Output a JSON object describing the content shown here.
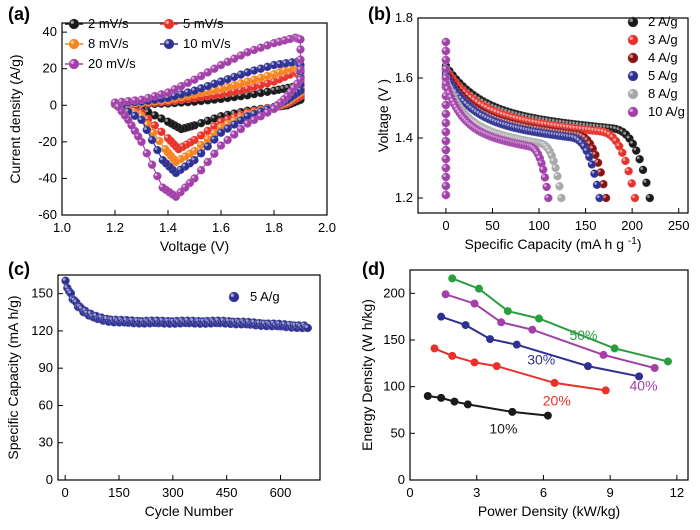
{
  "chart_data": [
    {
      "panel": "(a)",
      "type": "line",
      "title": "",
      "xlabel": "Voltage (V)",
      "ylabel": "Current density (A/g)",
      "xlim": [
        1.0,
        2.0
      ],
      "ylim": [
        -60,
        45
      ],
      "xticks": [
        "1.0",
        "1.2",
        "1.4",
        "1.6",
        "1.8",
        "2.0"
      ],
      "yticks": [
        "-60",
        "-40",
        "-20",
        "0",
        "20",
        "40"
      ],
      "series": [
        {
          "name": "2 mV/s",
          "color": "#1a1a1a",
          "upper": [
            [
              1.2,
              0.4
            ],
            [
              1.3,
              0.6
            ],
            [
              1.4,
              1.0
            ],
            [
              1.5,
              2
            ],
            [
              1.6,
              3.5
            ],
            [
              1.7,
              5.5
            ],
            [
              1.8,
              8
            ],
            [
              1.87,
              10
            ],
            [
              1.9,
              9
            ]
          ],
          "lower": [
            [
              1.9,
              3
            ],
            [
              1.85,
              0
            ],
            [
              1.8,
              -1
            ],
            [
              1.7,
              -3
            ],
            [
              1.6,
              -6
            ],
            [
              1.5,
              -11
            ],
            [
              1.45,
              -13
            ],
            [
              1.4,
              -9
            ],
            [
              1.3,
              -2
            ],
            [
              1.2,
              0.4
            ]
          ]
        },
        {
          "name": "5 mV/s",
          "color": "#e8312b",
          "upper": [
            [
              1.2,
              0.6
            ],
            [
              1.3,
              1
            ],
            [
              1.4,
              2
            ],
            [
              1.5,
              4
            ],
            [
              1.6,
              6
            ],
            [
              1.7,
              9
            ],
            [
              1.8,
              13
            ],
            [
              1.88,
              18
            ],
            [
              1.9,
              16
            ]
          ],
          "lower": [
            [
              1.9,
              5
            ],
            [
              1.85,
              1
            ],
            [
              1.8,
              -1
            ],
            [
              1.7,
              -4
            ],
            [
              1.6,
              -9
            ],
            [
              1.5,
              -19
            ],
            [
              1.44,
              -24
            ],
            [
              1.4,
              -18
            ],
            [
              1.3,
              -4
            ],
            [
              1.2,
              0.6
            ]
          ]
        },
        {
          "name": "8 mV/s",
          "color": "#f5841f",
          "upper": [
            [
              1.2,
              0.8
            ],
            [
              1.3,
              1.5
            ],
            [
              1.4,
              3
            ],
            [
              1.5,
              6
            ],
            [
              1.6,
              9
            ],
            [
              1.7,
              13
            ],
            [
              1.8,
              17
            ],
            [
              1.88,
              21
            ],
            [
              1.9,
              20
            ]
          ],
          "lower": [
            [
              1.9,
              7
            ],
            [
              1.85,
              2
            ],
            [
              1.8,
              -1
            ],
            [
              1.7,
              -5
            ],
            [
              1.6,
              -12
            ],
            [
              1.5,
              -25
            ],
            [
              1.43,
              -31
            ],
            [
              1.39,
              -24
            ],
            [
              1.3,
              -6
            ],
            [
              1.2,
              0.8
            ]
          ]
        },
        {
          "name": "10 mV/s",
          "color": "#2e3192",
          "upper": [
            [
              1.2,
              1
            ],
            [
              1.3,
              2
            ],
            [
              1.4,
              4
            ],
            [
              1.5,
              8
            ],
            [
              1.6,
              13
            ],
            [
              1.7,
              18
            ],
            [
              1.8,
              22
            ],
            [
              1.89,
              24
            ],
            [
              1.9,
              22
            ]
          ],
          "lower": [
            [
              1.9,
              8
            ],
            [
              1.85,
              3
            ],
            [
              1.8,
              -1
            ],
            [
              1.7,
              -6
            ],
            [
              1.6,
              -15
            ],
            [
              1.5,
              -30
            ],
            [
              1.43,
              -37
            ],
            [
              1.38,
              -30
            ],
            [
              1.3,
              -8
            ],
            [
              1.2,
              1
            ]
          ]
        },
        {
          "name": "20 mV/s",
          "color": "#a23fa8",
          "upper": [
            [
              1.2,
              1.5
            ],
            [
              1.3,
              3
            ],
            [
              1.4,
              7
            ],
            [
              1.5,
              14
            ],
            [
              1.6,
              22
            ],
            [
              1.7,
              29
            ],
            [
              1.8,
              34
            ],
            [
              1.88,
              37
            ],
            [
              1.9,
              36
            ]
          ],
          "lower": [
            [
              1.9,
              14
            ],
            [
              1.85,
              5
            ],
            [
              1.8,
              -2
            ],
            [
              1.7,
              -10
            ],
            [
              1.6,
              -22
            ],
            [
              1.5,
              -40
            ],
            [
              1.43,
              -50
            ],
            [
              1.38,
              -45
            ],
            [
              1.3,
              -20
            ],
            [
              1.25,
              -8
            ],
            [
              1.2,
              1.5
            ]
          ]
        }
      ]
    },
    {
      "panel": "(b)",
      "type": "line",
      "title": "",
      "xlabel": "Specific Capacity",
      "xlabel_unit": "(mA h g",
      "xlabel_sup": "-1",
      "xlabel_close": ")",
      "ylabel": "Voltage (V )",
      "xlim": [
        -30,
        260
      ],
      "ylim": [
        1.15,
        1.8
      ],
      "xticks": [
        "0",
        "50",
        "100",
        "150",
        "200",
        "250"
      ],
      "yticks": [
        "1.2",
        "1.4",
        "1.6",
        "1.8"
      ],
      "series": [
        {
          "name": "2 A/g",
          "color": "#1a1a1a",
          "capacity": 219,
          "v_start": 1.64,
          "v_plateau": 1.48
        },
        {
          "name": "3 A/g",
          "color": "#e8312b",
          "capacity": 203,
          "v_start": 1.63,
          "v_plateau": 1.47
        },
        {
          "name": "4 A/g",
          "color": "#8b1010",
          "capacity": 172,
          "v_start": 1.62,
          "v_plateau": 1.46
        },
        {
          "name": "5 A/g",
          "color": "#2e3192",
          "capacity": 165,
          "v_start": 1.61,
          "v_plateau": 1.45
        },
        {
          "name": "8 A/g",
          "color": "#a8a8a8",
          "capacity": 124,
          "v_start": 1.59,
          "v_plateau": 1.43
        },
        {
          "name": "10 A/g",
          "color": "#a23fa8",
          "capacity": 110,
          "v_start": 1.58,
          "v_plateau": 1.42
        }
      ]
    },
    {
      "panel": "(c)",
      "type": "scatter",
      "title": "",
      "xlabel": "Cycle Number",
      "ylabel": "Specific Capacity  (mA h/g)",
      "xlim": [
        -20,
        710
      ],
      "ylim": [
        0,
        165
      ],
      "xticks": [
        "0",
        "150",
        "300",
        "450",
        "600"
      ],
      "yticks": [
        "0",
        "30",
        "60",
        "90",
        "120",
        "150"
      ],
      "series": [
        {
          "name": "5 A/g",
          "color": "#2e3192",
          "initial": 160,
          "plateau": 127,
          "final": 123,
          "cycles": 680
        }
      ]
    },
    {
      "panel": "(d)",
      "type": "line",
      "title": "",
      "xlabel": "Power Density (kW/kg)",
      "ylabel": "Energy Density  (W h/kg)",
      "xlim": [
        0,
        12.5
      ],
      "ylim": [
        0,
        225
      ],
      "xticks": [
        "0",
        "3",
        "6",
        "9",
        "12"
      ],
      "yticks": [
        "0",
        "50",
        "100",
        "150",
        "200"
      ],
      "series": [
        {
          "name": "10%",
          "color": "#1a1a1a",
          "x": [
            0.8,
            1.4,
            2.0,
            2.6,
            4.6,
            6.2
          ],
          "y": [
            90,
            88,
            84,
            81,
            73,
            69
          ]
        },
        {
          "name": "20%",
          "color": "#e8312b",
          "x": [
            1.1,
            1.9,
            2.9,
            3.9,
            6.5,
            8.8
          ],
          "y": [
            141,
            133,
            126,
            122,
            104,
            96
          ]
        },
        {
          "name": "30%",
          "color": "#2e3192",
          "x": [
            1.4,
            2.5,
            3.6,
            4.8,
            8.0,
            10.3
          ],
          "y": [
            175,
            166,
            151,
            145,
            122,
            111
          ]
        },
        {
          "name": "40%",
          "color": "#a23fa8",
          "x": [
            1.6,
            2.9,
            4.1,
            5.5,
            8.7,
            11.0
          ],
          "y": [
            199,
            189,
            169,
            161,
            134,
            120
          ]
        },
        {
          "name": "50%",
          "color": "#2a9d3f",
          "x": [
            1.9,
            3.1,
            4.4,
            5.8,
            9.2,
            11.6
          ],
          "y": [
            216,
            205,
            181,
            173,
            141,
            127
          ]
        }
      ],
      "annotations": [
        {
          "text": "10%",
          "color": "#1a1a1a",
          "x": 4.2,
          "y": 50
        },
        {
          "text": "20%",
          "color": "#e8312b",
          "x": 6.6,
          "y": 80
        },
        {
          "text": "30%",
          "color": "#2e3192",
          "x": 5.9,
          "y": 124
        },
        {
          "text": "40%",
          "color": "#a23fa8",
          "x": 10.5,
          "y": 96
        },
        {
          "text": "50%",
          "color": "#2a9d3f",
          "x": 7.8,
          "y": 150
        }
      ]
    }
  ]
}
